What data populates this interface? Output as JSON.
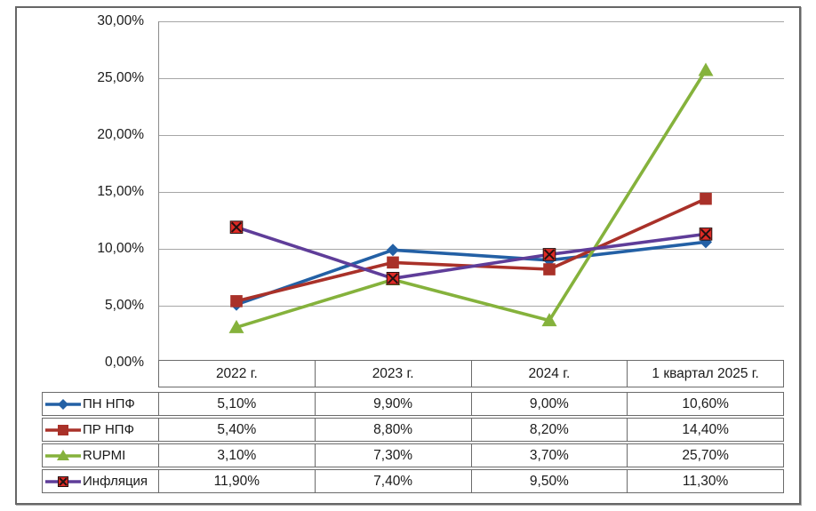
{
  "chart_data": {
    "type": "line",
    "title": "",
    "categories": [
      "2022 г.",
      "2023 г.",
      "2024 г.",
      "1 квартал 2025 г."
    ],
    "series": [
      {
        "name": "ПН НПФ",
        "marker": "diamond",
        "color": "#2360A5",
        "values": [
          5.1,
          9.9,
          9.0,
          10.6
        ],
        "display_values": [
          "5,10%",
          "9,90%",
          "9,00%",
          "10,60%"
        ]
      },
      {
        "name": "ПР НПФ",
        "marker": "square",
        "color": "#A93129",
        "values": [
          5.4,
          8.8,
          8.2,
          14.4
        ],
        "display_values": [
          "5,40%",
          "8,80%",
          "8,20%",
          "14,40%"
        ]
      },
      {
        "name": "RUPMI",
        "marker": "triangle",
        "color": "#85B23C",
        "values": [
          3.1,
          7.3,
          3.7,
          25.7
        ],
        "display_values": [
          "3,10%",
          "7,30%",
          "3,70%",
          "25,70%"
        ]
      },
      {
        "name": "Инфляция",
        "marker": "x-square",
        "color": "#5F3D99",
        "marker_fill": "#DD2B25",
        "marker_stroke": "#231111",
        "values": [
          11.9,
          7.4,
          9.5,
          11.3
        ],
        "display_values": [
          "11,90%",
          "7,40%",
          "9,50%",
          "11,30%"
        ]
      }
    ],
    "ylim": [
      0,
      30
    ],
    "ytick_step": 5,
    "ytick_labels": [
      "30,00%",
      "25,00%",
      "20,00%",
      "15,00%",
      "10,00%",
      "5,00%",
      "0,00%"
    ],
    "value_format": "percent-comma",
    "grid": true,
    "legend_position": "table-left",
    "colors": {
      "gridline": "#A6A6A6",
      "axis": "#8C8C8C",
      "table_border": "#6B6B6B",
      "frame_border": "#666666",
      "text": "#1A1A1A"
    }
  }
}
